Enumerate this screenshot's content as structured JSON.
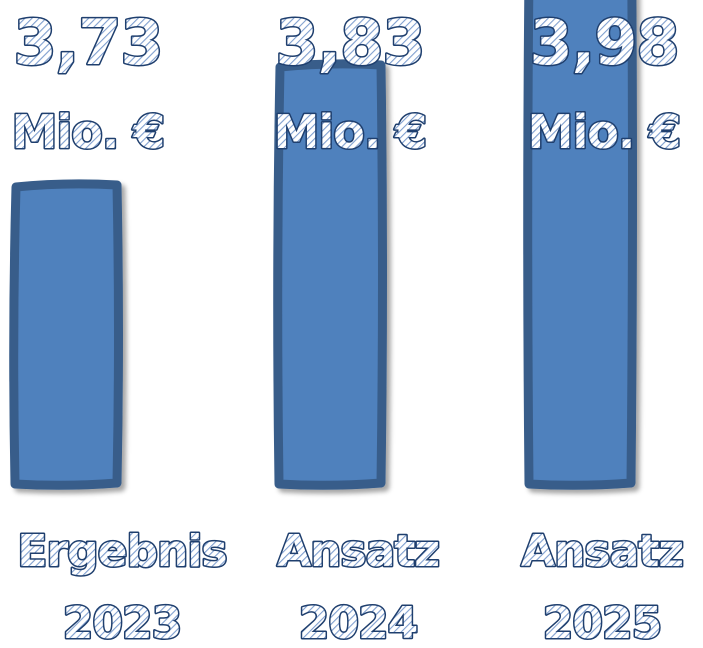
{
  "chart_data": {
    "type": "bar",
    "categories": [
      [
        "Ergebnis",
        "2023"
      ],
      [
        "Ansatz",
        "2024"
      ],
      [
        "Ansatz",
        "2025"
      ]
    ],
    "values": [
      3.73,
      3.83,
      3.98
    ],
    "value_labels": [
      "3,73",
      "3,83",
      "3,98"
    ],
    "unit": "Mio. €",
    "title": "",
    "xlabel": "",
    "ylabel": "",
    "bar_color": "#4f81bd",
    "bar_border_color": "#385d8a",
    "label_outline_color": "#1f3f6e",
    "grid": false,
    "legend": "none"
  }
}
